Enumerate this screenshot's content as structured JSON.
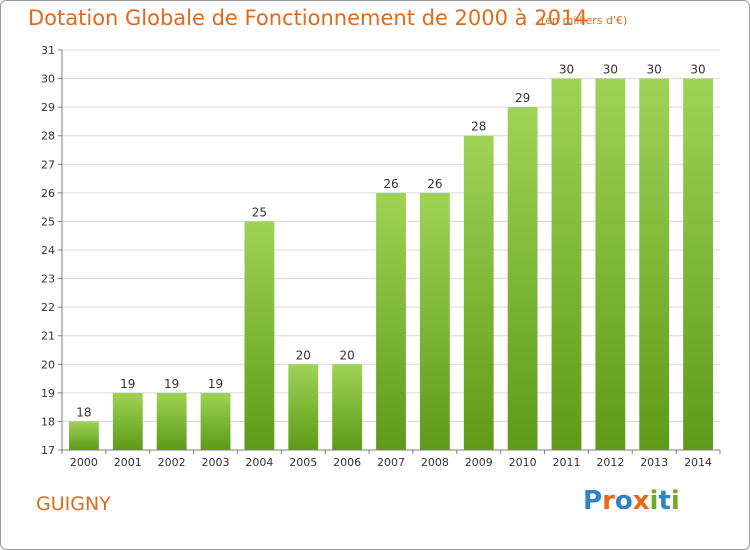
{
  "header": {
    "title": "Dotation Globale de Fonctionnement de 2000 à 2014",
    "unit_note": "(en milliers d'€)"
  },
  "footer": {
    "commune": "GUIGNY",
    "logo_text": "Proxiti",
    "logo_colors": [
      "#2f83c4",
      "#e8671b",
      "#2f83c4",
      "#e8671b",
      "#6fa92b",
      "#2f83c4",
      "#6fa92b"
    ]
  },
  "colors": {
    "accent": "#e06a1a",
    "bar_top": "#9fd356",
    "bar_bottom": "#5e9a17",
    "grid": "#d8d8d8",
    "axis": "#7f7f7f",
    "text": "#333333"
  },
  "chart_data": {
    "type": "bar",
    "categories": [
      "2000",
      "2001",
      "2002",
      "2003",
      "2004",
      "2005",
      "2006",
      "2007",
      "2008",
      "2009",
      "2010",
      "2011",
      "2012",
      "2013",
      "2014"
    ],
    "values": [
      18,
      19,
      19,
      19,
      25,
      20,
      20,
      26,
      26,
      28,
      29,
      30,
      30,
      30,
      30
    ],
    "data_labels": [
      "18",
      "19",
      "19",
      "19",
      "25",
      "20",
      "20",
      "26",
      "26",
      "28",
      "29",
      "30",
      "30",
      "30",
      "30"
    ],
    "ylim": [
      17,
      31
    ],
    "yticks": [
      17,
      18,
      19,
      20,
      21,
      22,
      23,
      24,
      25,
      26,
      27,
      28,
      29,
      30,
      31
    ],
    "xlabel": "",
    "ylabel": "",
    "grid": true,
    "legend": "none"
  }
}
